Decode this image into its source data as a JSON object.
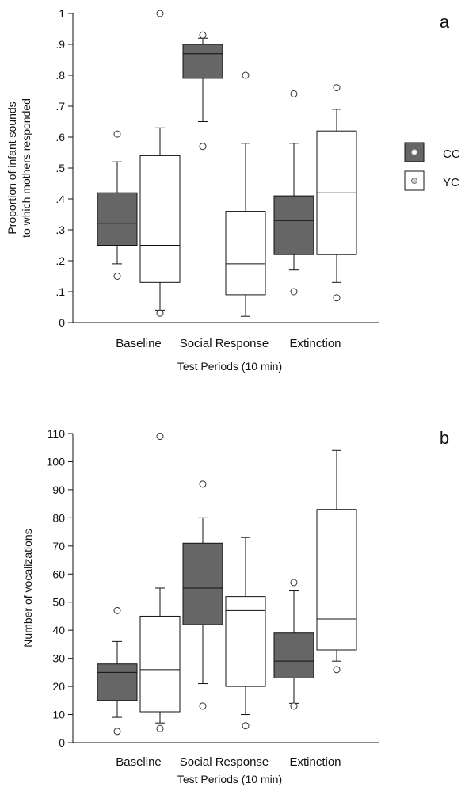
{
  "legend": {
    "items": [
      {
        "label": "CC",
        "box_fill": "#666666",
        "dot_fill": "#ffffff"
      },
      {
        "label": "YC",
        "box_fill": "#ffffff",
        "dot_fill": "#cccccc"
      }
    ]
  },
  "chart_data": [
    {
      "type": "box",
      "panel_label": "a",
      "xlabel": "Test Periods (10 min)",
      "ylabel_lines": [
        "Proportion of infant sounds",
        "to which mothers responded"
      ],
      "ylim": [
        0,
        1
      ],
      "yticks": [
        0,
        0.1,
        0.2,
        0.3,
        0.4,
        0.5,
        0.6,
        0.7,
        0.8,
        0.9,
        1
      ],
      "ytick_labels": [
        "0",
        ".1",
        ".2",
        ".3",
        ".4",
        ".5",
        ".6",
        ".7",
        ".8",
        ".9",
        "1"
      ],
      "categories": [
        "Baseline",
        "Social Response",
        "Extinction"
      ],
      "series": [
        {
          "name": "CC",
          "fill": "#666666",
          "boxes": [
            {
              "whisker_low": 0.19,
              "q1": 0.25,
              "median": 0.32,
              "q3": 0.42,
              "whisker_high": 0.52,
              "outliers": [
                0.61,
                0.15
              ]
            },
            {
              "whisker_low": 0.65,
              "q1": 0.79,
              "median": 0.87,
              "q3": 0.9,
              "whisker_high": 0.92,
              "outliers": [
                0.93,
                0.57
              ]
            },
            {
              "whisker_low": 0.17,
              "q1": 0.22,
              "median": 0.33,
              "q3": 0.41,
              "whisker_high": 0.58,
              "outliers": [
                0.74,
                0.1
              ]
            }
          ]
        },
        {
          "name": "YC",
          "fill": "#ffffff",
          "boxes": [
            {
              "whisker_low": 0.04,
              "q1": 0.13,
              "median": 0.25,
              "q3": 0.54,
              "whisker_high": 0.63,
              "outliers": [
                1.0,
                0.03
              ]
            },
            {
              "whisker_low": 0.02,
              "q1": 0.09,
              "median": 0.19,
              "q3": 0.36,
              "whisker_high": 0.58,
              "outliers": [
                0.8
              ]
            },
            {
              "whisker_low": 0.13,
              "q1": 0.22,
              "median": 0.42,
              "q3": 0.62,
              "whisker_high": 0.69,
              "outliers": [
                0.76,
                0.08
              ]
            }
          ]
        }
      ]
    },
    {
      "type": "box",
      "panel_label": "b",
      "xlabel": "Test Periods (10 min)",
      "ylabel_lines": [
        "Number of vocalizations"
      ],
      "ylim": [
        0,
        110
      ],
      "yticks": [
        0,
        10,
        20,
        30,
        40,
        50,
        60,
        70,
        80,
        90,
        100,
        110
      ],
      "ytick_labels": [
        "0",
        "10",
        "20",
        "30",
        "40",
        "50",
        "60",
        "70",
        "80",
        "90",
        "100",
        "110"
      ],
      "categories": [
        "Baseline",
        "Social Response",
        "Extinction"
      ],
      "series": [
        {
          "name": "CC",
          "fill": "#666666",
          "boxes": [
            {
              "whisker_low": 9,
              "q1": 15,
              "median": 25,
              "q3": 28,
              "whisker_high": 36,
              "outliers": [
                47,
                4
              ]
            },
            {
              "whisker_low": 21,
              "q1": 42,
              "median": 55,
              "q3": 71,
              "whisker_high": 80,
              "outliers": [
                92,
                13
              ]
            },
            {
              "whisker_low": 14,
              "q1": 23,
              "median": 29,
              "q3": 39,
              "whisker_high": 54,
              "outliers": [
                57,
                13
              ]
            }
          ]
        },
        {
          "name": "YC",
          "fill": "#ffffff",
          "boxes": [
            {
              "whisker_low": 7,
              "q1": 11,
              "median": 26,
              "q3": 45,
              "whisker_high": 55,
              "outliers": [
                109,
                5
              ]
            },
            {
              "whisker_low": 10,
              "q1": 20,
              "median": 47,
              "q3": 52,
              "whisker_high": 73,
              "outliers": [
                6
              ]
            },
            {
              "whisker_low": 29,
              "q1": 33,
              "median": 44,
              "q3": 83,
              "whisker_high": 104,
              "outliers": [
                26
              ]
            }
          ]
        }
      ]
    }
  ]
}
